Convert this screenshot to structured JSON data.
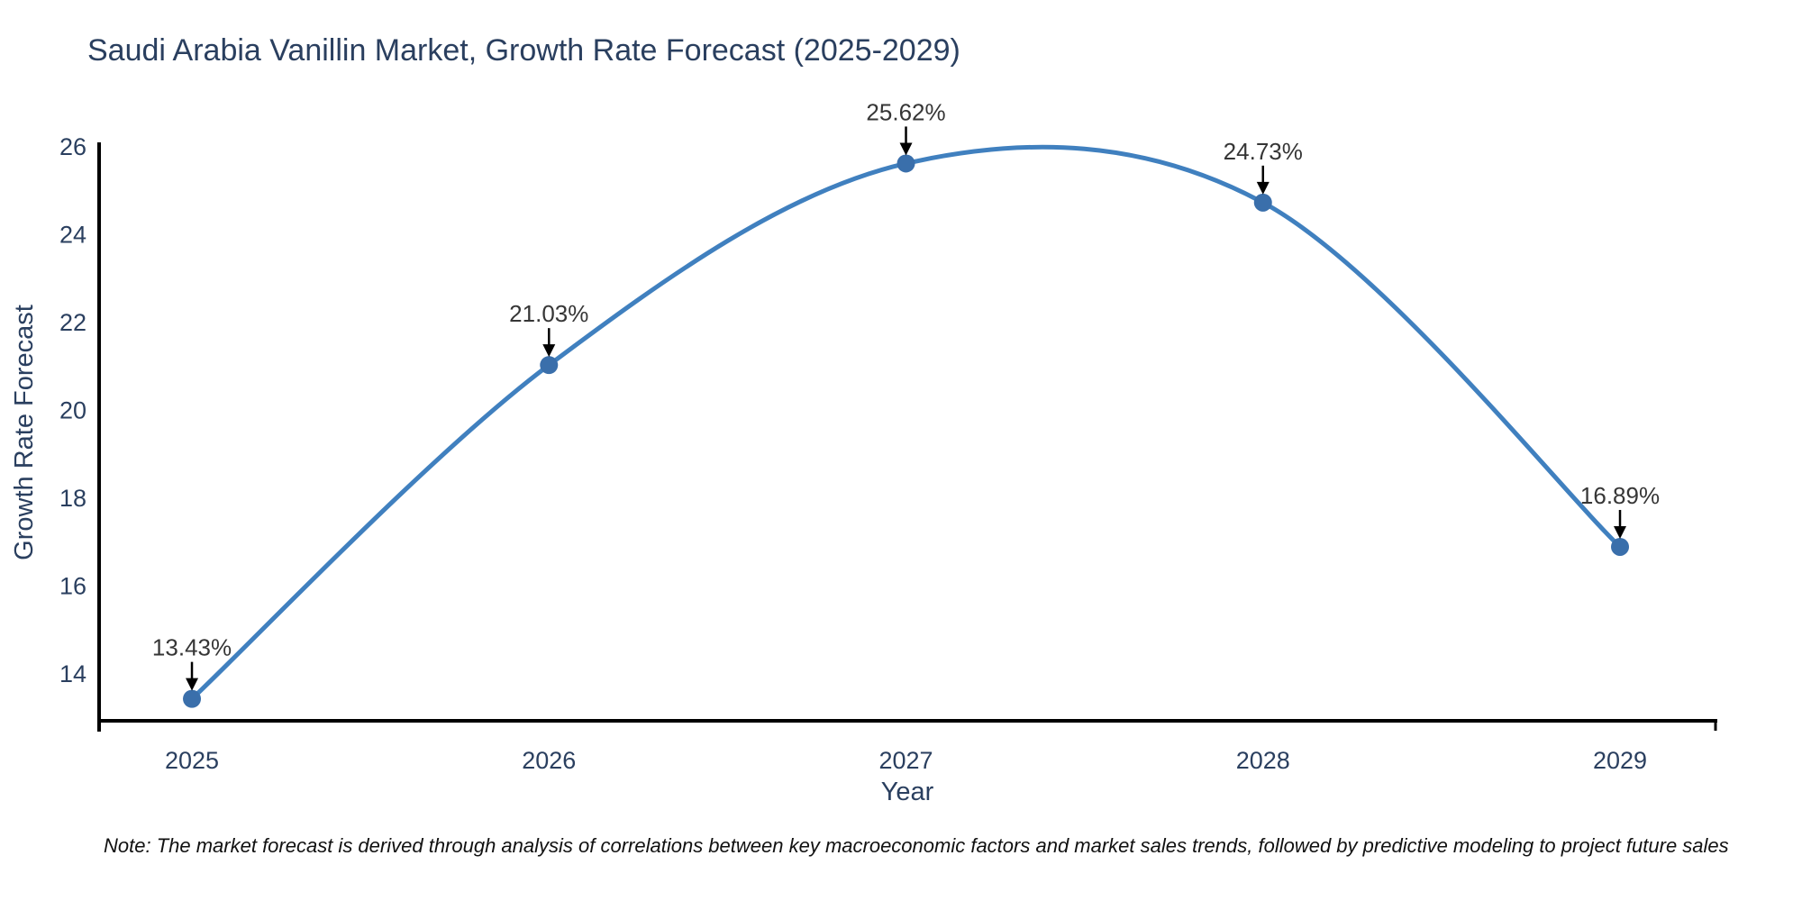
{
  "title": "Saudi Arabia Vanillin Market, Growth Rate Forecast (2025-2029)",
  "note": "Note: The market forecast is derived through analysis of correlations between key macroeconomic factors and market sales trends, followed by predictive modeling to project future sales",
  "chart_data": {
    "type": "line",
    "line_shape": "spline",
    "x": [
      2025,
      2026,
      2027,
      2028,
      2029
    ],
    "series": [
      {
        "name": "Growth Rate Forecast",
        "values": [
          13.43,
          21.03,
          25.62,
          24.73,
          16.89
        ]
      }
    ],
    "point_labels": [
      "13.43%",
      "21.03%",
      "25.62%",
      "24.73%",
      "16.89%"
    ],
    "title": "Saudi Arabia Vanillin Market, Growth Rate Forecast (2025-2029)",
    "xlabel": "Year",
    "ylabel": "Growth Rate Forecast",
    "xticks": [
      "2025",
      "2026",
      "2027",
      "2028",
      "2029"
    ],
    "yticks": [
      14,
      16,
      18,
      20,
      22,
      24,
      26
    ],
    "xlim": [
      2024.74,
      2029.27
    ],
    "ylim": [
      12.93,
      26.06
    ],
    "grid": false,
    "legend": "none",
    "colors": {
      "line": "#4080bf",
      "marker": "#3a6fab",
      "axis": "#000000",
      "arrow": "#000000",
      "text": "#2a3f5f",
      "annotation": "#363636",
      "note": "#111111",
      "background": "#ffffff"
    }
  }
}
